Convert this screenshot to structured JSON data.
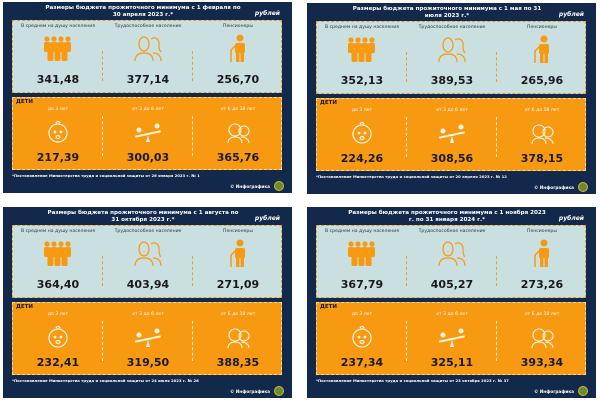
{
  "accent_colors": {
    "navy": "#13294b",
    "adult_box": "#c9dfe0",
    "kids_box": "#f79a12",
    "icon": "#f79a12"
  },
  "labels": {
    "unit": "рублей",
    "per_capita": "В среднем на душу населения",
    "working": "Трудоспособное население",
    "pensioners": "Пенсионеры",
    "children": "ДЕТИ",
    "age_0_3": "до 3 лет",
    "age_3_6": "от 3 до 6 лет",
    "age_6_18": "от 6 до 18 лет",
    "credit": "© Инфографика"
  },
  "icons": [
    "people-group-icon",
    "couple-icon",
    "elderly-person-icon",
    "baby-icon",
    "seesaw-icon",
    "teenagers-icon",
    "emblem-logo"
  ],
  "panels": [
    {
      "title": "Размеры бюджета прожиточного минимума с 1 февраля по 30 апреля 2023 г.*",
      "values": [
        "341,48",
        "377,14",
        "256,70",
        "217,39",
        "300,03",
        "365,76"
      ],
      "footnote": "*Постановление Министерства труда и социальной защиты от 26 января 2023 г. № 1"
    },
    {
      "title": "Размеры бюджета прожиточного минимума с 1 мая по 31 июля 2023 г.*",
      "values": [
        "352,13",
        "389,53",
        "265,96",
        "224,26",
        "308,56",
        "378,15"
      ],
      "footnote": "*Постановление Министерства труда и социальной защиты от 20 апреля 2023 г. № 12"
    },
    {
      "title": "Размеры бюджета прожиточного минимума с 1 августа по 31 октября 2023 г.*",
      "values": [
        "364,40",
        "403,94",
        "271,09",
        "232,41",
        "319,50",
        "388,35"
      ],
      "footnote": "*Постановление Министерства труда и социальной защиты от 24 июля 2023 г. № 26"
    },
    {
      "title": "Размеры бюджета прожиточного минимума с 1 ноября 2023 г. по 31 января 2024 г.*",
      "values": [
        "367,79",
        "405,27",
        "273,26",
        "237,34",
        "325,11",
        "393,34"
      ],
      "footnote": "*Постановление Министерства труда и социальной защиты от 23 октября 2023 г. № 37"
    }
  ]
}
